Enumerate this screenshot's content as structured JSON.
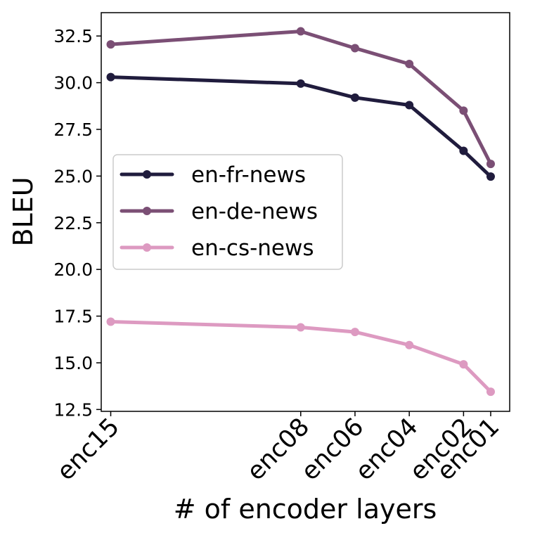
{
  "chart_data": {
    "type": "line",
    "xlabel": "# of encoder layers",
    "ylabel": "BLEU",
    "categories": [
      "enc15",
      "enc08",
      "enc06",
      "enc04",
      "enc02",
      "enc01"
    ],
    "x": [
      15,
      8,
      6,
      4,
      2,
      1
    ],
    "xlim": [
      15.35,
      0.3
    ],
    "ylim": [
      12.4,
      33.75
    ],
    "yticks": [
      "12.5",
      "15.0",
      "17.5",
      "20.0",
      "22.5",
      "25.0",
      "27.5",
      "30.0",
      "32.5"
    ],
    "grid": false,
    "legend_position": "center-left",
    "series": [
      {
        "name": "en-fr-news",
        "color": "#201c3d",
        "values": [
          30.3,
          29.95,
          29.2,
          28.8,
          26.35,
          24.97
        ]
      },
      {
        "name": "en-de-news",
        "color": "#7b4f75",
        "values": [
          32.05,
          32.75,
          31.85,
          31.0,
          28.5,
          25.65
        ]
      },
      {
        "name": "en-cs-news",
        "color": "#dd9ac1",
        "values": [
          17.2,
          16.9,
          16.65,
          15.95,
          14.92,
          13.45
        ]
      }
    ]
  }
}
